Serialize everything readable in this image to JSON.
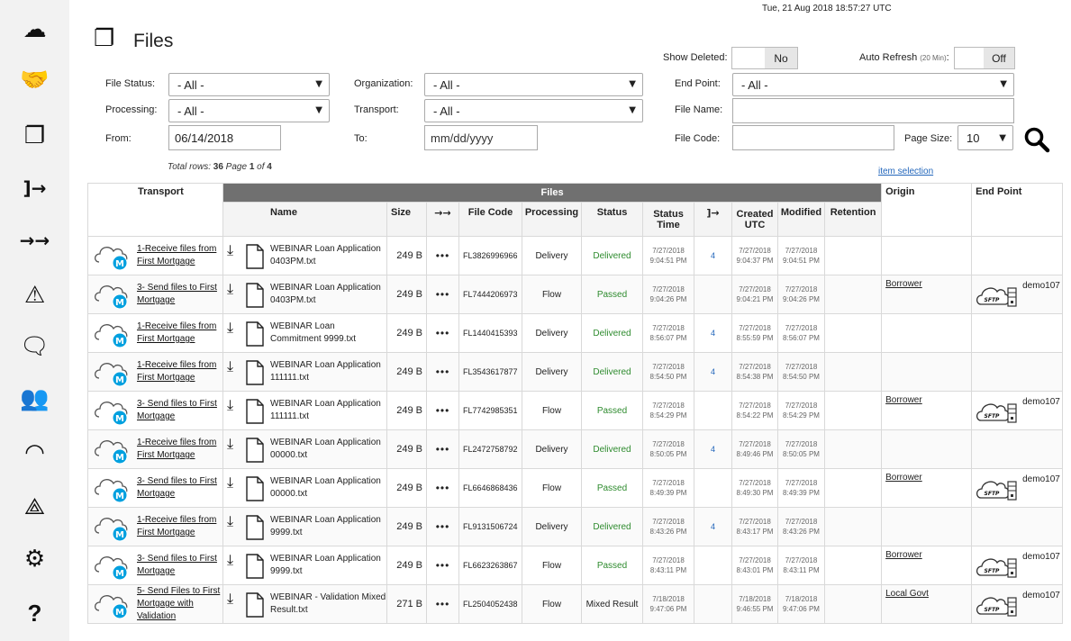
{
  "timestamp": "Tue, 21 Aug 2018 18:57:27 UTC",
  "sidebar": {
    "items": [
      {
        "name": "cloud-sync-icon",
        "glyph": "☁"
      },
      {
        "name": "handshake-icon",
        "glyph": "🤝"
      },
      {
        "name": "files-icon",
        "glyph": "❐"
      },
      {
        "name": "transfer-in-icon",
        "glyph": "]→"
      },
      {
        "name": "double-arrow-icon",
        "glyph": "→→"
      },
      {
        "name": "warning-icon",
        "glyph": "⚠"
      },
      {
        "name": "chat-icon",
        "glyph": "🗨"
      },
      {
        "name": "users-icon",
        "glyph": "👥"
      },
      {
        "name": "gauge-icon",
        "glyph": "◠"
      },
      {
        "name": "network-icon",
        "glyph": "⟁"
      },
      {
        "name": "gear-icon",
        "glyph": "⚙"
      },
      {
        "name": "help-icon",
        "glyph": "?"
      }
    ]
  },
  "header": {
    "title": "Files"
  },
  "filters": {
    "show_deleted_label": "Show Deleted:",
    "show_deleted_value": "No",
    "auto_refresh_label": "Auto Refresh",
    "auto_refresh_note": "(20 Min)",
    "auto_refresh_colon": ":",
    "auto_refresh_value": "Off",
    "file_status_label": "File Status:",
    "file_status_value": "- All -",
    "organization_label": "Organization:",
    "organization_value": "- All -",
    "end_point_label": "End Point:",
    "end_point_value": "- All -",
    "processing_label": "Processing:",
    "processing_value": "- All -",
    "transport_label": "Transport:",
    "transport_value": "- All -",
    "file_name_label": "File Name:",
    "file_name_value": "",
    "from_label": "From:",
    "from_value": "06/14/2018",
    "to_label": "To:",
    "to_placeholder": "mm/dd/yyyy",
    "file_code_label": "File Code:",
    "file_code_value": "",
    "page_size_label": "Page Size:",
    "page_size_value": "10"
  },
  "summary": {
    "prefix": "Total rows: ",
    "rows": "36",
    "page_prefix": "  Page ",
    "page": "1",
    "of": " of ",
    "pages": "4"
  },
  "item_selection": "item selection",
  "table": {
    "group_files": "Files",
    "headers": {
      "transport": "Transport",
      "name": "Name",
      "size": "Size",
      "arrows": "→→",
      "file_code": "File Code",
      "processing": "Processing",
      "status": "Status",
      "status_time_1": "Status",
      "status_time_2": "Time",
      "in_arrow": "]→",
      "created_1": "Created",
      "created_2": "UTC",
      "modified": "Modified",
      "retention": "Retention",
      "origin": "Origin",
      "end_point": "End Point"
    },
    "rows": [
      {
        "transport": "1-Receive files from First Mortgage",
        "name": "WEBINAR Loan Application 0403PM.txt",
        "size": "249 B",
        "dots": "•••",
        "code": "FL3826996966",
        "processing": "Delivery",
        "status": "Delivered",
        "status_kind": "d",
        "st_date": "7/27/2018",
        "st_time": "9:04:51 PM",
        "count": "4",
        "cr_date": "7/27/2018",
        "cr_time": "9:04:37 PM",
        "mo_date": "7/27/2018",
        "mo_time": "9:04:51 PM",
        "origin": "",
        "endpoint": ""
      },
      {
        "transport": "3- Send files to First Mortgage",
        "name": "WEBINAR Loan Application 0403PM.txt",
        "size": "249 B",
        "dots": "•••",
        "code": "FL7444206973",
        "processing": "Flow",
        "status": "Passed",
        "status_kind": "p",
        "st_date": "7/27/2018",
        "st_time": "9:04:26 PM",
        "count": "",
        "cr_date": "7/27/2018",
        "cr_time": "9:04:21 PM",
        "mo_date": "7/27/2018",
        "mo_time": "9:04:26 PM",
        "origin": "Borrower",
        "endpoint": "demo107"
      },
      {
        "transport": "1-Receive files from First Mortgage",
        "name": "WEBINAR Loan Commitment 9999.txt",
        "size": "249 B",
        "dots": "•••",
        "code": "FL1440415393",
        "processing": "Delivery",
        "status": "Delivered",
        "status_kind": "d",
        "st_date": "7/27/2018",
        "st_time": "8:56:07 PM",
        "count": "4",
        "cr_date": "7/27/2018",
        "cr_time": "8:55:59 PM",
        "mo_date": "7/27/2018",
        "mo_time": "8:56:07 PM",
        "origin": "",
        "endpoint": ""
      },
      {
        "transport": "1-Receive files from First Mortgage",
        "name": "WEBINAR Loan Application 111111.txt",
        "size": "249 B",
        "dots": "•••",
        "code": "FL3543617877",
        "processing": "Delivery",
        "status": "Delivered",
        "status_kind": "d",
        "st_date": "7/27/2018",
        "st_time": "8:54:50 PM",
        "count": "4",
        "cr_date": "7/27/2018",
        "cr_time": "8:54:38 PM",
        "mo_date": "7/27/2018",
        "mo_time": "8:54:50 PM",
        "origin": "",
        "endpoint": ""
      },
      {
        "transport": "3- Send files to First Mortgage",
        "name": "WEBINAR Loan Application 111111.txt",
        "size": "249 B",
        "dots": "•••",
        "code": "FL7742985351",
        "processing": "Flow",
        "status": "Passed",
        "status_kind": "p",
        "st_date": "7/27/2018",
        "st_time": "8:54:29 PM",
        "count": "",
        "cr_date": "7/27/2018",
        "cr_time": "8:54:22 PM",
        "mo_date": "7/27/2018",
        "mo_time": "8:54:29 PM",
        "origin": "Borrower",
        "endpoint": "demo107"
      },
      {
        "transport": "1-Receive files from First Mortgage",
        "name": "WEBINAR Loan Application 00000.txt",
        "size": "249 B",
        "dots": "•••",
        "code": "FL2472758792",
        "processing": "Delivery",
        "status": "Delivered",
        "status_kind": "d",
        "st_date": "7/27/2018",
        "st_time": "8:50:05 PM",
        "count": "4",
        "cr_date": "7/27/2018",
        "cr_time": "8:49:46 PM",
        "mo_date": "7/27/2018",
        "mo_time": "8:50:05 PM",
        "origin": "",
        "endpoint": ""
      },
      {
        "transport": "3- Send files to First Mortgage",
        "name": "WEBINAR Loan Application 00000.txt",
        "size": "249 B",
        "dots": "•••",
        "code": "FL6646868436",
        "processing": "Flow",
        "status": "Passed",
        "status_kind": "p",
        "st_date": "7/27/2018",
        "st_time": "8:49:39 PM",
        "count": "",
        "cr_date": "7/27/2018",
        "cr_time": "8:49:30 PM",
        "mo_date": "7/27/2018",
        "mo_time": "8:49:39 PM",
        "origin": "Borrower",
        "endpoint": "demo107"
      },
      {
        "transport": "1-Receive files from First Mortgage",
        "name": "WEBINAR Loan Application 9999.txt",
        "size": "249 B",
        "dots": "•••",
        "code": "FL9131506724",
        "processing": "Delivery",
        "status": "Delivered",
        "status_kind": "d",
        "st_date": "7/27/2018",
        "st_time": "8:43:26 PM",
        "count": "4",
        "cr_date": "7/27/2018",
        "cr_time": "8:43:17 PM",
        "mo_date": "7/27/2018",
        "mo_time": "8:43:26 PM",
        "origin": "",
        "endpoint": ""
      },
      {
        "transport": "3- Send files to First Mortgage",
        "name": "WEBINAR Loan Application 9999.txt",
        "size": "249 B",
        "dots": "•••",
        "code": "FL6623263867",
        "processing": "Flow",
        "status": "Passed",
        "status_kind": "p",
        "st_date": "7/27/2018",
        "st_time": "8:43:11 PM",
        "count": "",
        "cr_date": "7/27/2018",
        "cr_time": "8:43:01 PM",
        "mo_date": "7/27/2018",
        "mo_time": "8:43:11 PM",
        "origin": "Borrower",
        "endpoint": "demo107"
      },
      {
        "transport": "5- Send Files to First Mortgage with Validation",
        "name": "WEBINAR - Validation Mixed Result.txt",
        "size": "271 B",
        "dots": "•••",
        "code": "FL2504052438",
        "processing": "Flow",
        "status": "Mixed Result",
        "status_kind": "m",
        "st_date": "7/18/2018",
        "st_time": "9:47:06 PM",
        "count": "",
        "cr_date": "7/18/2018",
        "cr_time": "9:46:55 PM",
        "mo_date": "7/18/2018",
        "mo_time": "9:47:06 PM",
        "origin": "Local Govt",
        "endpoint": "demo107"
      }
    ]
  },
  "colors": {
    "sidebar_bg": "#f2f2f2",
    "header_bar": "#707070",
    "status_green": "#2e8b2e",
    "link_blue": "#2266bb",
    "mule_blue": "#00a0df"
  }
}
